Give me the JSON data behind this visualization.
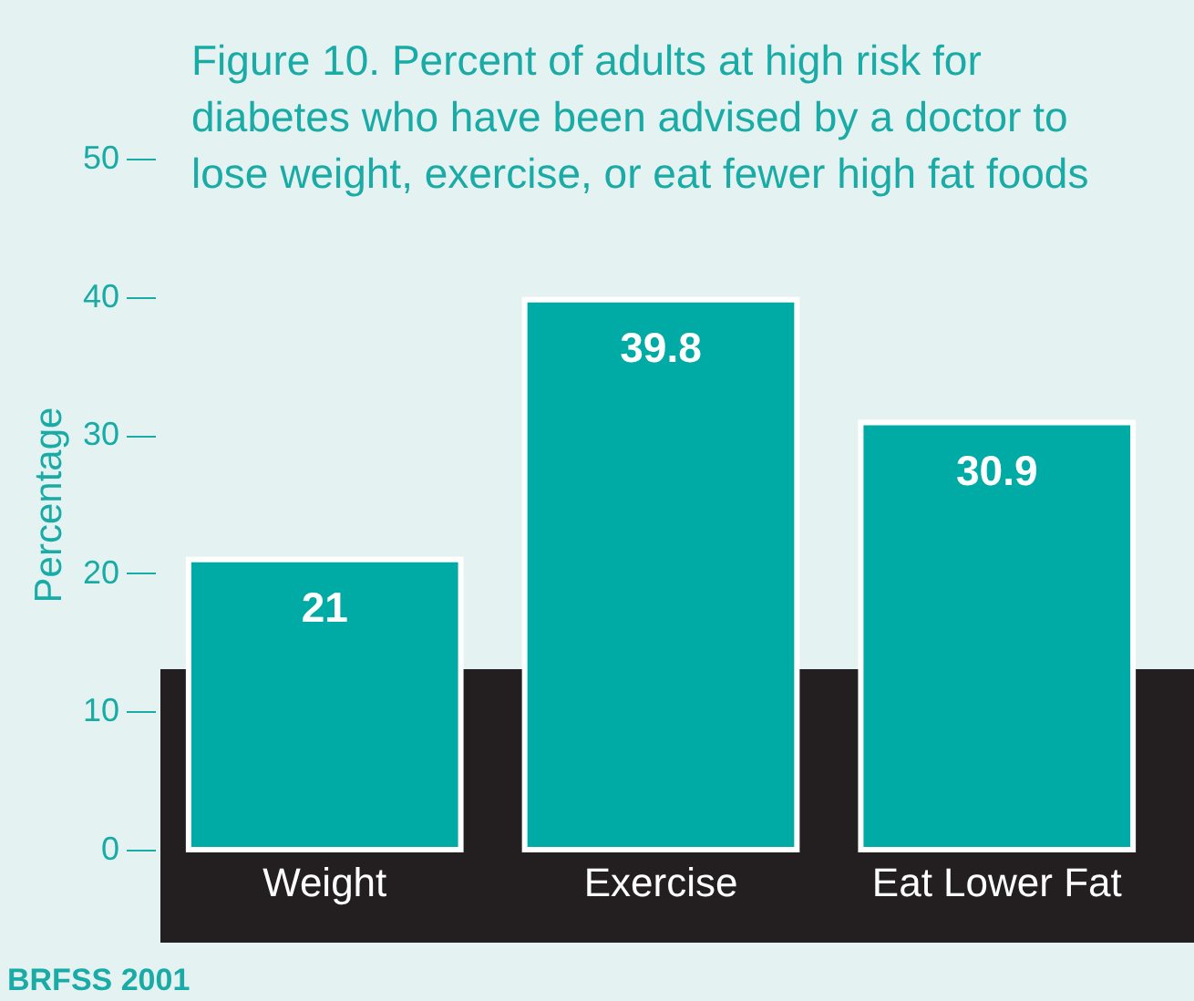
{
  "chart_data": {
    "type": "bar",
    "title": "Figure 10.  Percent of adults at high risk for diabetes who have been advised by a doctor to lose weight, exercise, or eat fewer high fat foods",
    "ylabel": "Percentage",
    "categories": [
      "Weight",
      "Exercise",
      "Eat Lower Fat"
    ],
    "values": [
      21,
      39.8,
      30.9
    ],
    "color": "#00aaa5",
    "ylim": [
      0,
      50
    ],
    "yticks": [
      0,
      10,
      20,
      30,
      40,
      50
    ],
    "data_labels": true,
    "annotations": [
      "BRFSS 2001"
    ]
  }
}
